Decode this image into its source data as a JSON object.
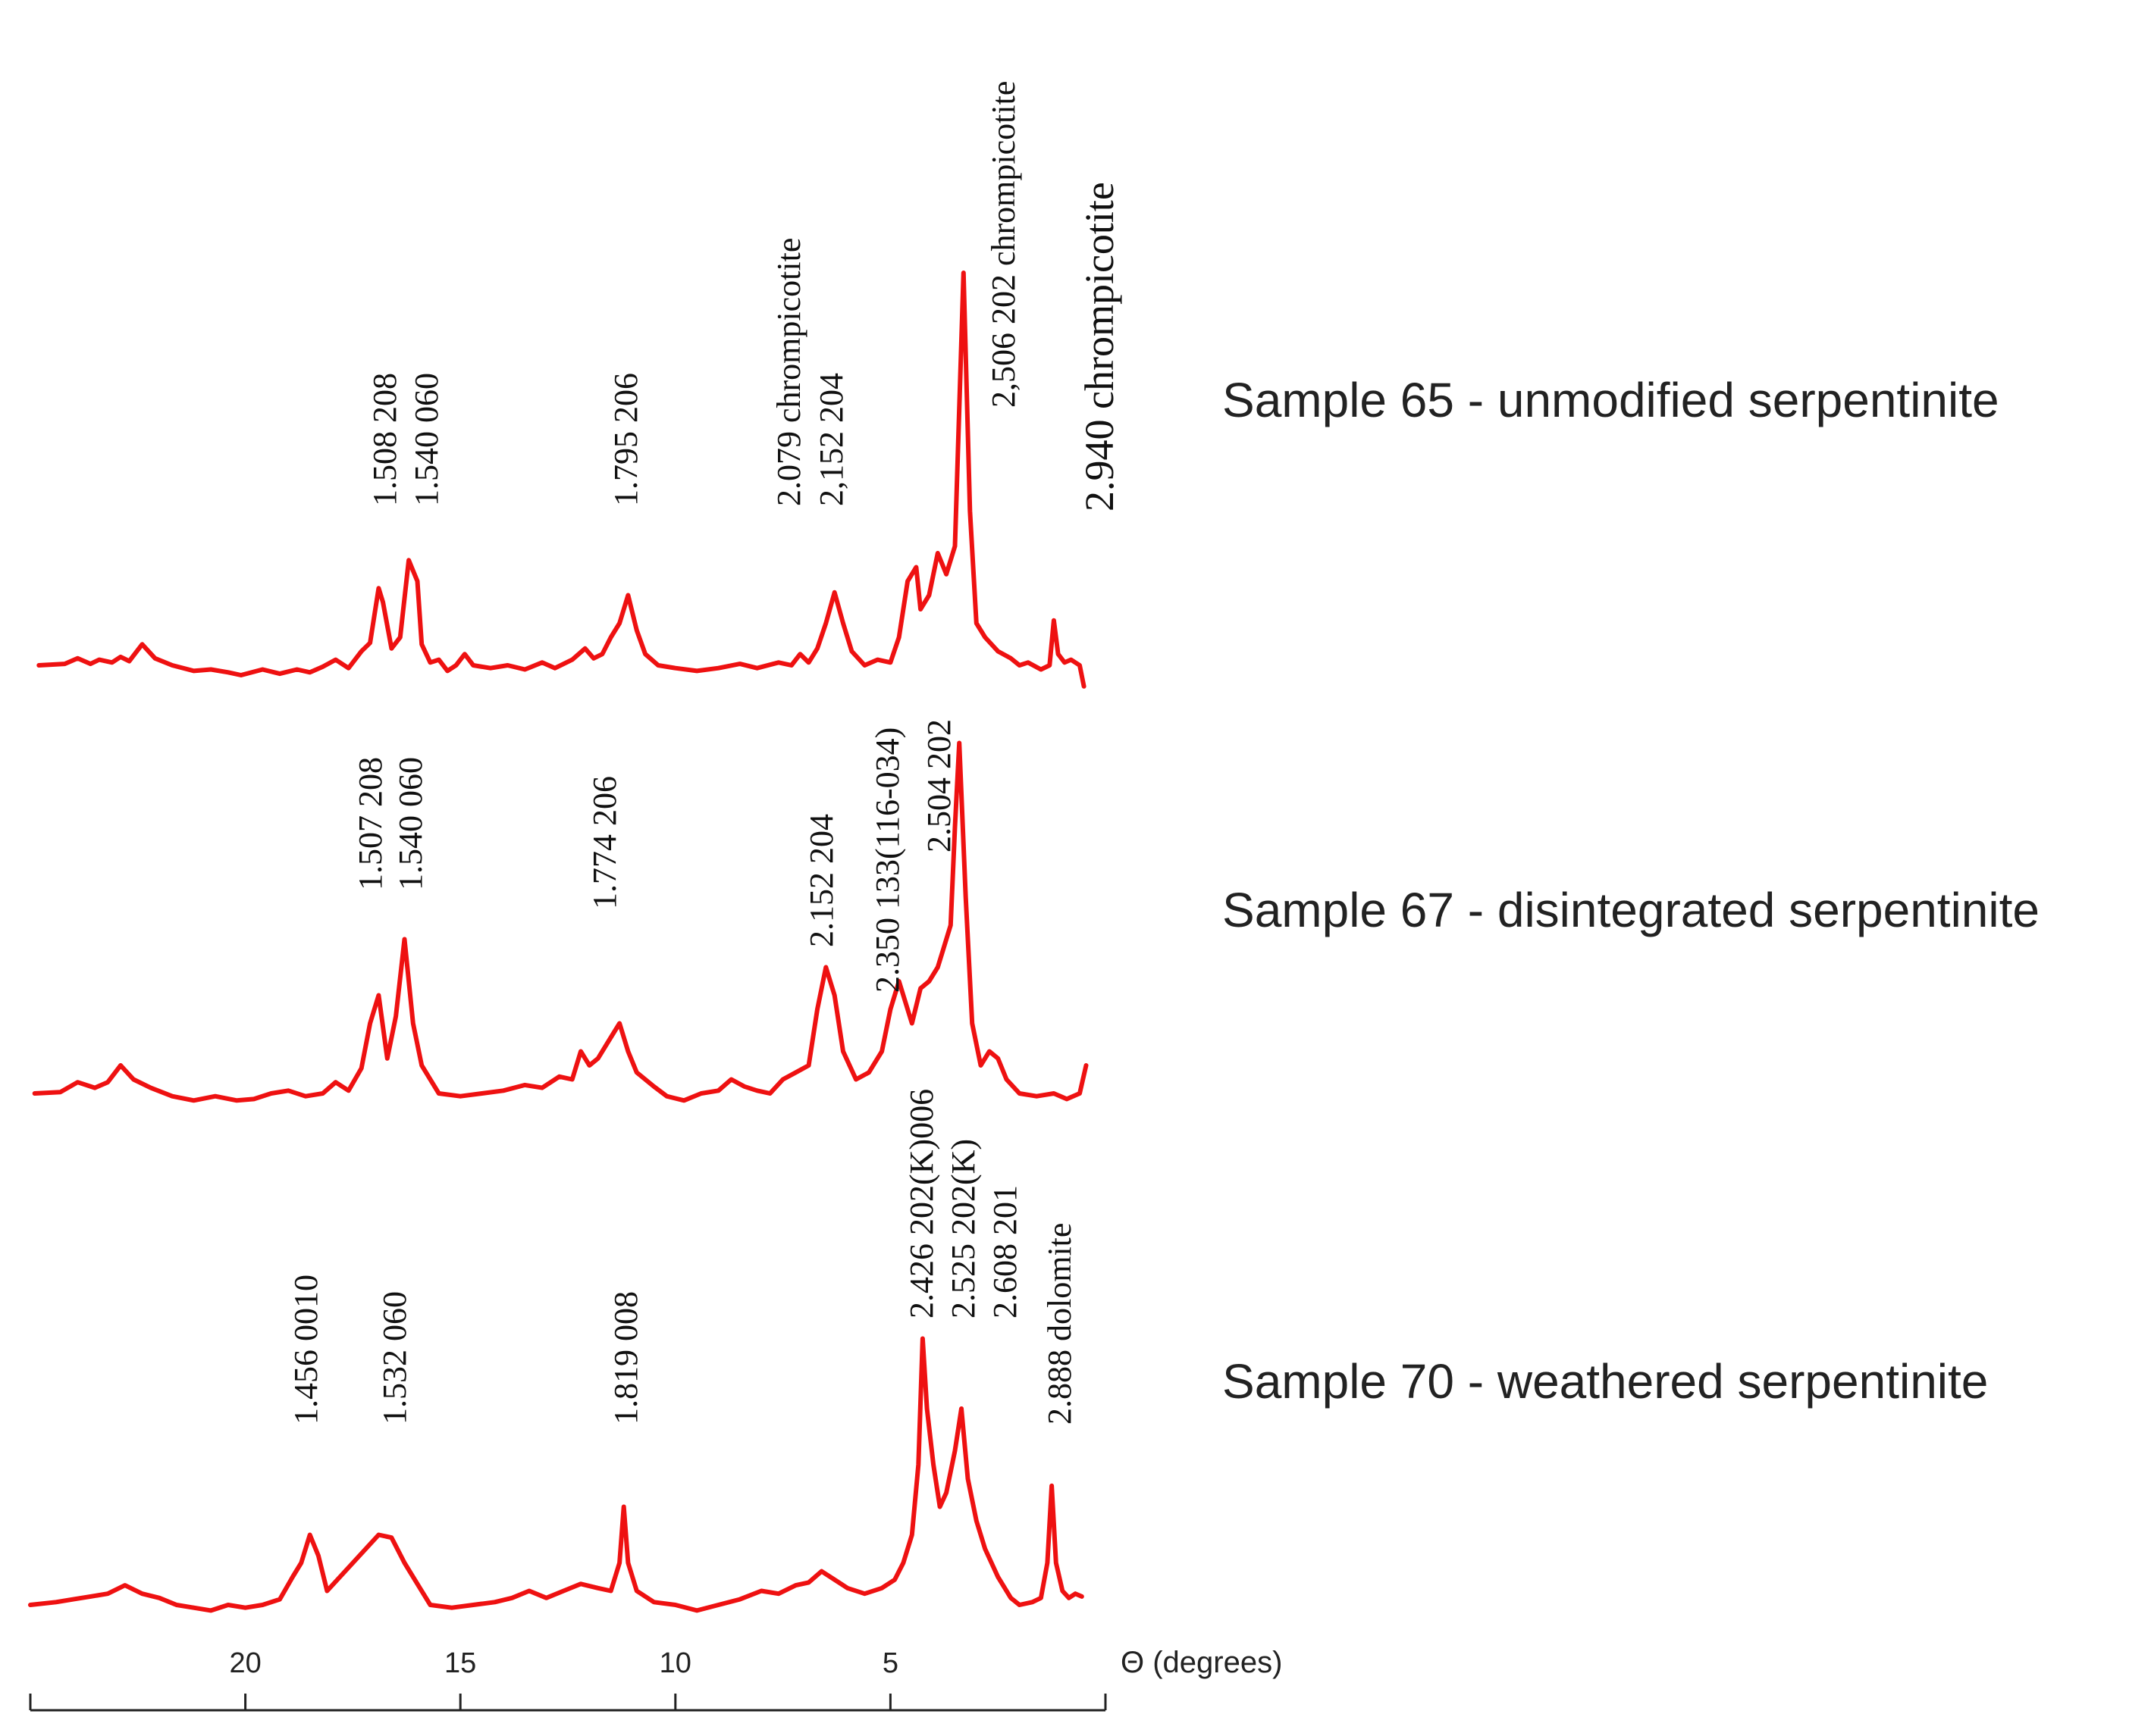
{
  "chart_data": {
    "type": "line",
    "title": "",
    "xlabel": "Θ (degrees)",
    "ylabel": "",
    "xlim": [
      25,
      0
    ],
    "x_reversed": true,
    "ticks": [
      20,
      15,
      10,
      5
    ],
    "grid": false,
    "series": [
      {
        "name": "Sample 65 - unmodified serpentinite",
        "baseline": 10,
        "points": [
          [
            24.8,
            10
          ],
          [
            24.2,
            11
          ],
          [
            23.9,
            15
          ],
          [
            23.6,
            11
          ],
          [
            23.4,
            14
          ],
          [
            23.1,
            12
          ],
          [
            22.9,
            16
          ],
          [
            22.7,
            13
          ],
          [
            22.4,
            25
          ],
          [
            22.1,
            15
          ],
          [
            21.7,
            10
          ],
          [
            21.2,
            6
          ],
          [
            20.8,
            7
          ],
          [
            20.4,
            5
          ],
          [
            20.1,
            3
          ],
          [
            19.6,
            7
          ],
          [
            19.2,
            4
          ],
          [
            18.8,
            7
          ],
          [
            18.5,
            5
          ],
          [
            18.2,
            9
          ],
          [
            17.9,
            14
          ],
          [
            17.6,
            8
          ],
          [
            17.3,
            20
          ],
          [
            17.1,
            26
          ],
          [
            16.9,
            65
          ],
          [
            16.8,
            55
          ],
          [
            16.6,
            22
          ],
          [
            16.4,
            30
          ],
          [
            16.2,
            85
          ],
          [
            16.0,
            70
          ],
          [
            15.9,
            25
          ],
          [
            15.7,
            12
          ],
          [
            15.5,
            14
          ],
          [
            15.3,
            6
          ],
          [
            15.1,
            10
          ],
          [
            14.9,
            18
          ],
          [
            14.7,
            10
          ],
          [
            14.3,
            8
          ],
          [
            13.9,
            10
          ],
          [
            13.5,
            7
          ],
          [
            13.1,
            12
          ],
          [
            12.8,
            8
          ],
          [
            12.4,
            14
          ],
          [
            12.1,
            22
          ],
          [
            11.9,
            15
          ],
          [
            11.7,
            18
          ],
          [
            11.5,
            30
          ],
          [
            11.3,
            40
          ],
          [
            11.1,
            60
          ],
          [
            10.9,
            35
          ],
          [
            10.7,
            18
          ],
          [
            10.4,
            10
          ],
          [
            10.0,
            8
          ],
          [
            9.5,
            6
          ],
          [
            9.0,
            8
          ],
          [
            8.5,
            11
          ],
          [
            8.1,
            8
          ],
          [
            7.6,
            12
          ],
          [
            7.3,
            10
          ],
          [
            7.1,
            18
          ],
          [
            6.9,
            12
          ],
          [
            6.7,
            22
          ],
          [
            6.5,
            40
          ],
          [
            6.3,
            62
          ],
          [
            6.1,
            40
          ],
          [
            5.9,
            20
          ],
          [
            5.6,
            10
          ],
          [
            5.3,
            14
          ],
          [
            5.0,
            12
          ],
          [
            4.8,
            30
          ],
          [
            4.6,
            70
          ],
          [
            4.4,
            80
          ],
          [
            4.3,
            50
          ],
          [
            4.1,
            60
          ],
          [
            3.9,
            90
          ],
          [
            3.7,
            75
          ],
          [
            3.5,
            95
          ],
          [
            3.3,
            290
          ],
          [
            3.15,
            120
          ],
          [
            3.0,
            40
          ],
          [
            2.8,
            30
          ],
          [
            2.5,
            20
          ],
          [
            2.2,
            15
          ],
          [
            2.0,
            10
          ],
          [
            1.8,
            12
          ],
          [
            1.5,
            7
          ],
          [
            1.3,
            10
          ],
          [
            1.2,
            42
          ],
          [
            1.1,
            18
          ],
          [
            0.95,
            12
          ],
          [
            0.8,
            14
          ],
          [
            0.6,
            10
          ],
          [
            0.5,
            -5
          ]
        ]
      },
      {
        "name": "Sample 67 - disintegrated serpentinite",
        "baseline": 10,
        "points": [
          [
            24.9,
            10
          ],
          [
            24.3,
            11
          ],
          [
            23.9,
            18
          ],
          [
            23.5,
            14
          ],
          [
            23.2,
            18
          ],
          [
            22.9,
            30
          ],
          [
            22.6,
            20
          ],
          [
            22.2,
            14
          ],
          [
            21.7,
            8
          ],
          [
            21.2,
            5
          ],
          [
            20.7,
            8
          ],
          [
            20.2,
            5
          ],
          [
            19.8,
            6
          ],
          [
            19.4,
            10
          ],
          [
            19.0,
            12
          ],
          [
            18.6,
            8
          ],
          [
            18.2,
            10
          ],
          [
            17.9,
            18
          ],
          [
            17.6,
            12
          ],
          [
            17.3,
            28
          ],
          [
            17.1,
            60
          ],
          [
            16.9,
            80
          ],
          [
            16.7,
            35
          ],
          [
            16.5,
            65
          ],
          [
            16.3,
            120
          ],
          [
            16.1,
            60
          ],
          [
            15.9,
            30
          ],
          [
            15.5,
            10
          ],
          [
            15.0,
            8
          ],
          [
            14.5,
            10
          ],
          [
            14.0,
            12
          ],
          [
            13.5,
            16
          ],
          [
            13.1,
            14
          ],
          [
            12.7,
            22
          ],
          [
            12.4,
            20
          ],
          [
            12.2,
            40
          ],
          [
            12.0,
            30
          ],
          [
            11.8,
            35
          ],
          [
            11.5,
            50
          ],
          [
            11.3,
            60
          ],
          [
            11.1,
            40
          ],
          [
            10.9,
            25
          ],
          [
            10.5,
            15
          ],
          [
            10.2,
            8
          ],
          [
            9.8,
            5
          ],
          [
            9.4,
            10
          ],
          [
            9.0,
            12
          ],
          [
            8.7,
            20
          ],
          [
            8.4,
            15
          ],
          [
            8.1,
            12
          ],
          [
            7.8,
            10
          ],
          [
            7.5,
            20
          ],
          [
            7.2,
            25
          ],
          [
            6.9,
            30
          ],
          [
            6.7,
            70
          ],
          [
            6.5,
            100
          ],
          [
            6.3,
            80
          ],
          [
            6.1,
            40
          ],
          [
            5.8,
            20
          ],
          [
            5.5,
            25
          ],
          [
            5.2,
            40
          ],
          [
            5.0,
            70
          ],
          [
            4.8,
            90
          ],
          [
            4.5,
            60
          ],
          [
            4.3,
            85
          ],
          [
            4.1,
            90
          ],
          [
            3.9,
            100
          ],
          [
            3.8,
            110
          ],
          [
            3.6,
            130
          ],
          [
            3.5,
            200
          ],
          [
            3.4,
            260
          ],
          [
            3.25,
            150
          ],
          [
            3.1,
            60
          ],
          [
            2.9,
            30
          ],
          [
            2.7,
            40
          ],
          [
            2.5,
            35
          ],
          [
            2.3,
            20
          ],
          [
            2.0,
            10
          ],
          [
            1.6,
            8
          ],
          [
            1.2,
            10
          ],
          [
            0.9,
            6
          ],
          [
            0.6,
            10
          ],
          [
            0.45,
            30
          ]
        ]
      },
      {
        "name": "Sample 70 - weathered serpentinite",
        "baseline": 10,
        "points": [
          [
            25.0,
            10
          ],
          [
            24.4,
            12
          ],
          [
            24.0,
            14
          ],
          [
            23.6,
            16
          ],
          [
            23.2,
            18
          ],
          [
            22.8,
            24
          ],
          [
            22.4,
            18
          ],
          [
            22.0,
            15
          ],
          [
            21.6,
            10
          ],
          [
            21.2,
            8
          ],
          [
            20.8,
            6
          ],
          [
            20.4,
            10
          ],
          [
            20.0,
            8
          ],
          [
            19.6,
            10
          ],
          [
            19.2,
            14
          ],
          [
            18.9,
            30
          ],
          [
            18.7,
            40
          ],
          [
            18.5,
            60
          ],
          [
            18.3,
            45
          ],
          [
            18.1,
            20
          ],
          [
            17.8,
            30
          ],
          [
            17.5,
            40
          ],
          [
            17.2,
            50
          ],
          [
            16.9,
            60
          ],
          [
            16.6,
            58
          ],
          [
            16.3,
            40
          ],
          [
            16.0,
            25
          ],
          [
            15.7,
            10
          ],
          [
            15.2,
            8
          ],
          [
            14.7,
            10
          ],
          [
            14.2,
            12
          ],
          [
            13.8,
            15
          ],
          [
            13.4,
            20
          ],
          [
            13.0,
            15
          ],
          [
            12.6,
            20
          ],
          [
            12.2,
            25
          ],
          [
            11.8,
            22
          ],
          [
            11.5,
            20
          ],
          [
            11.3,
            40
          ],
          [
            11.2,
            80
          ],
          [
            11.1,
            40
          ],
          [
            10.9,
            20
          ],
          [
            10.5,
            12
          ],
          [
            10.0,
            10
          ],
          [
            9.5,
            6
          ],
          [
            9.0,
            10
          ],
          [
            8.5,
            14
          ],
          [
            8.0,
            20
          ],
          [
            7.6,
            18
          ],
          [
            7.2,
            24
          ],
          [
            6.9,
            26
          ],
          [
            6.6,
            34
          ],
          [
            6.3,
            28
          ],
          [
            6.0,
            22
          ],
          [
            5.6,
            18
          ],
          [
            5.2,
            22
          ],
          [
            4.9,
            28
          ],
          [
            4.7,
            40
          ],
          [
            4.5,
            60
          ],
          [
            4.35,
            110
          ],
          [
            4.25,
            200
          ],
          [
            4.15,
            150
          ],
          [
            4.0,
            110
          ],
          [
            3.85,
            80
          ],
          [
            3.7,
            90
          ],
          [
            3.5,
            120
          ],
          [
            3.35,
            150
          ],
          [
            3.2,
            100
          ],
          [
            3.0,
            70
          ],
          [
            2.8,
            50
          ],
          [
            2.5,
            30
          ],
          [
            2.2,
            15
          ],
          [
            2.0,
            10
          ],
          [
            1.7,
            12
          ],
          [
            1.5,
            15
          ],
          [
            1.35,
            40
          ],
          [
            1.25,
            95
          ],
          [
            1.15,
            40
          ],
          [
            1.0,
            20
          ],
          [
            0.85,
            15
          ],
          [
            0.7,
            18
          ],
          [
            0.55,
            16
          ]
        ]
      }
    ],
    "annotations": [
      {
        "sample": 0,
        "lines": [
          "1.508  208",
          "1.540  060"
        ]
      },
      {
        "sample": 0,
        "lines": [
          "1.795  206"
        ]
      },
      {
        "sample": 0,
        "lines": [
          "2.079  chrompicotite",
          "2,152  204"
        ]
      },
      {
        "sample": 0,
        "lines": [
          "2,506  202  chrompicotite"
        ]
      },
      {
        "sample": 0,
        "lines": [
          "2.940  chrompicotite"
        ]
      },
      {
        "sample": 1,
        "lines": [
          "1.507  208",
          "1.540  060"
        ]
      },
      {
        "sample": 1,
        "lines": [
          "1.774  206"
        ]
      },
      {
        "sample": 1,
        "lines": [
          "2.152  204"
        ]
      },
      {
        "sample": 1,
        "lines": [
          "2.350  133(116-034)"
        ]
      },
      {
        "sample": 1,
        "lines": [
          "2.504  202"
        ]
      },
      {
        "sample": 2,
        "lines": [
          "1.456  0010"
        ]
      },
      {
        "sample": 2,
        "lines": [
          "1.532  060"
        ]
      },
      {
        "sample": 2,
        "lines": [
          "1.819  008"
        ]
      },
      {
        "sample": 2,
        "lines": [
          "2.426 202(K)006",
          "2.525 202(K)",
          "2.608 201"
        ]
      },
      {
        "sample": 2,
        "lines": [
          "2.888  dolomite"
        ]
      }
    ],
    "legend_position": "right"
  }
}
